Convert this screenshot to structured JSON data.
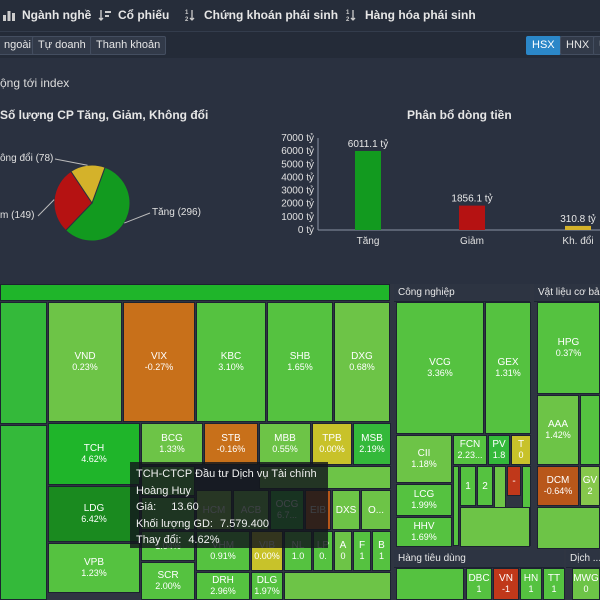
{
  "nav": {
    "items": [
      {
        "label": "Ngành nghề",
        "icon": "bar-chart-icon"
      },
      {
        "label": "Cổ phiếu",
        "icon": "sort-icon"
      },
      {
        "label": "Chứng khoán phái sinh",
        "icon": "sort-numeric-icon"
      },
      {
        "label": "Hàng hóa phái sinh",
        "icon": "sort-numeric-icon"
      }
    ]
  },
  "subbar": {
    "left": [
      "ngoài",
      "Tự doanh",
      "Thanh khoản"
    ],
    "exchanges": [
      "HSX",
      "HNX",
      "U"
    ],
    "active_exchange": "HSX"
  },
  "panel": {
    "impact_title": "ộng tới index",
    "pie_title": "Số lượng CP Tăng, Giảm, Không đổi",
    "flow_title": "Phân bổ dòng tiền"
  },
  "chart_data": [
    {
      "type": "pie",
      "title": "Số lượng CP Tăng, Giảm, Không đổi",
      "labels": [
        "Tăng (296)",
        "m (149)",
        "ông đổi (78)"
      ],
      "values": [
        296,
        149,
        78
      ],
      "colors": [
        "#129a1f",
        "#b51212",
        "#d4b22a"
      ]
    },
    {
      "type": "bar",
      "title": "Phân bổ dòng tiền",
      "categories": [
        "Tăng",
        "Giảm",
        "Kh. đổi"
      ],
      "values": [
        6011.1,
        1856.1,
        310.8
      ],
      "data_labels": [
        "6011.1 tỷ",
        "1856.1 tỷ",
        "310.8 tỷ"
      ],
      "colors": [
        "#129a1f",
        "#b51212",
        "#d4b22a"
      ],
      "ylim": [
        0,
        7000
      ],
      "yticks": [
        "0 tỷ",
        "1000 tỷ",
        "2000 tỷ",
        "3000 tỷ",
        "4000 tỷ",
        "5000 tỷ",
        "6000 tỷ",
        "7000 tỷ"
      ]
    }
  ],
  "treemap": {
    "sectors": [
      "Công nghiệp",
      "Vật liệu cơ bản",
      "Hàng tiêu dùng",
      "Dịch ..."
    ],
    "tiles": [
      {
        "code": "VND",
        "chg": "0.23%"
      },
      {
        "code": "VIX",
        "chg": "-0.27%"
      },
      {
        "code": "KBC",
        "chg": "3.10%"
      },
      {
        "code": "SHB",
        "chg": "1.65%"
      },
      {
        "code": "DXG",
        "chg": "0.68%"
      },
      {
        "code": "TCH",
        "chg": "4.62%"
      },
      {
        "code": "BCG",
        "chg": "1.33%"
      },
      {
        "code": "STB",
        "chg": "-0.16%"
      },
      {
        "code": "MBB",
        "chg": "0.55%"
      },
      {
        "code": "TPB",
        "chg": "0.00%"
      },
      {
        "code": "MSB",
        "chg": "2.19%"
      },
      {
        "code": "LDG",
        "chg": "6.42%"
      },
      {
        "code": "HCM",
        "chg": ""
      },
      {
        "code": "ACB",
        "chg": ""
      },
      {
        "code": "OCG",
        "chg": "6.7..."
      },
      {
        "code": "EIB",
        "chg": ""
      },
      {
        "code": "DXS",
        "chg": ""
      },
      {
        "code": "O...",
        "chg": ""
      },
      {
        "code": "VPB",
        "chg": "1.23%"
      },
      {
        "code": "",
        "chg": "1.04%"
      },
      {
        "code": "VHM",
        "chg": "0.91%"
      },
      {
        "code": "VIB",
        "chg": "0.00%"
      },
      {
        "code": "NL",
        "chg": "1.0"
      },
      {
        "code": "LP",
        "chg": "0."
      },
      {
        "code": "A",
        "chg": "0"
      },
      {
        "code": "F",
        "chg": "1"
      },
      {
        "code": "B",
        "chg": "1"
      },
      {
        "code": "SCR",
        "chg": "2.00%"
      },
      {
        "code": "DRH",
        "chg": "2.96%"
      },
      {
        "code": "DLG",
        "chg": "1.97%"
      },
      {
        "code": "VCG",
        "chg": "3.36%"
      },
      {
        "code": "GEX",
        "chg": "1.31%"
      },
      {
        "code": "CII",
        "chg": "1.18%"
      },
      {
        "code": "FCN",
        "chg": "2.23..."
      },
      {
        "code": "PV",
        "chg": "1.8"
      },
      {
        "code": "T",
        "chg": "0"
      },
      {
        "code": "1",
        "chg": ""
      },
      {
        "code": "2",
        "chg": ""
      },
      {
        "code": "-",
        "chg": ""
      },
      {
        "code": "LCG",
        "chg": "1.99%"
      },
      {
        "code": "HHV",
        "chg": "1.69%"
      },
      {
        "code": "HPG",
        "chg": "0.37%"
      },
      {
        "code": "AAA",
        "chg": "1.42%"
      },
      {
        "code": "DCM",
        "chg": "-0.64%"
      },
      {
        "code": "GV",
        "chg": "2"
      },
      {
        "code": "DBC",
        "chg": "1"
      },
      {
        "code": "VN",
        "chg": "-1"
      },
      {
        "code": "HN",
        "chg": "1"
      },
      {
        "code": "TT",
        "chg": "1"
      },
      {
        "code": "MWG",
        "chg": "0"
      }
    ]
  },
  "tooltip": {
    "title": "TCH-CTCP Đầu tư Dịch vụ Tài chính",
    "subtitle": "Hoàng Huy",
    "price_label": "Giá:",
    "price_value": "13.60",
    "volume_label": "Khối lượng GD:",
    "volume_value": "7.579.400",
    "change_label": "Thay đổi:",
    "change_value": "4.62%"
  }
}
